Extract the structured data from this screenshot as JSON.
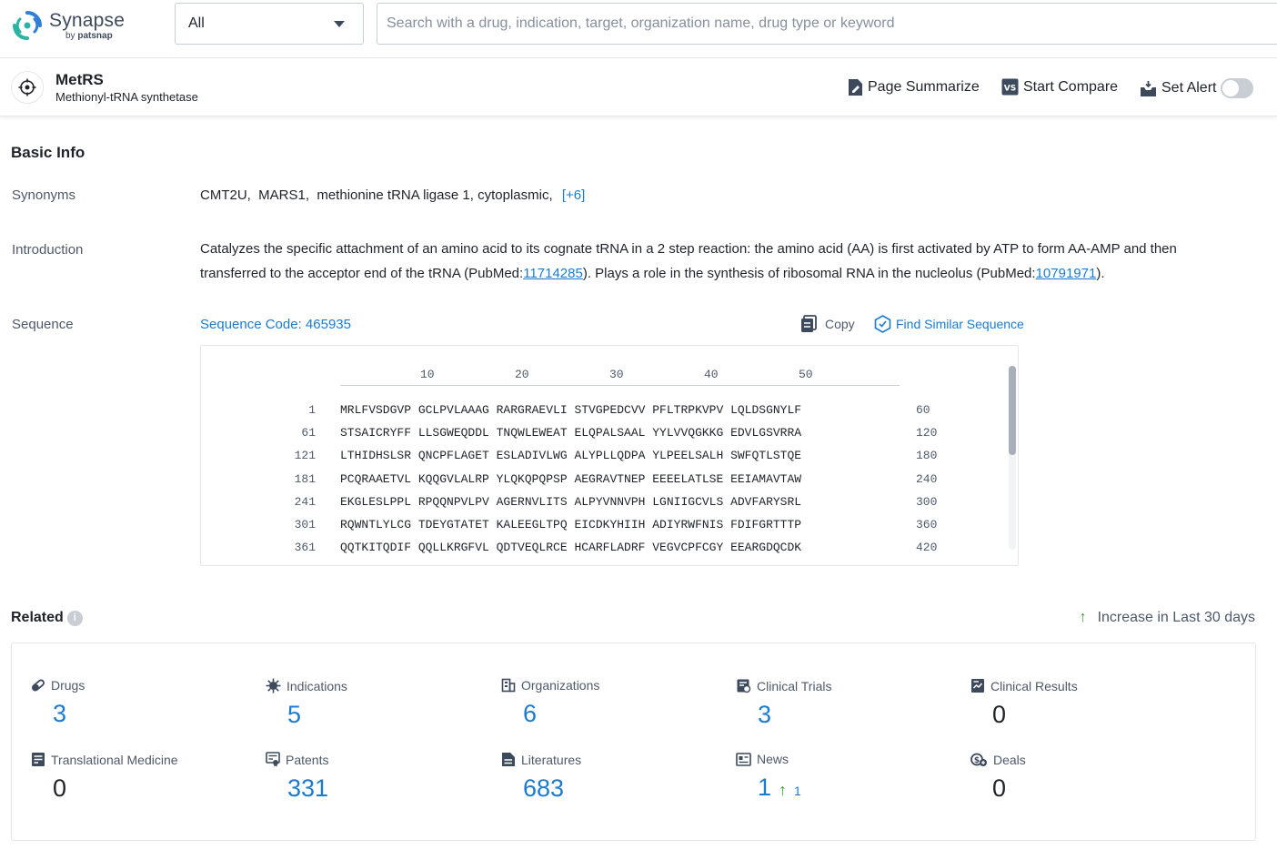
{
  "header": {
    "logo_name": "Synapse",
    "logo_by": "by",
    "logo_brand": "patsnap",
    "select_value": "All",
    "search_placeholder": "Search with a drug, indication, target, organization name, drug type or keyword"
  },
  "target": {
    "name": "MetRS",
    "full_name": "Methionyl-tRNA synthetase",
    "actions": {
      "summarize": "Page Summarize",
      "compare": "Start Compare",
      "alert": "Set Alert"
    }
  },
  "basic_info": {
    "title": "Basic Info",
    "synonyms_label": "Synonyms",
    "synonyms": "CMT2U,  MARS1,  methionine tRNA ligase 1, cytoplasmic,",
    "synonyms_more": "[+6]",
    "intro_label": "Introduction",
    "intro_part1": "Catalyzes the specific attachment of an amino acid to its cognate tRNA in a 2 step reaction: the amino acid (AA) is first activated by ATP to form AA-AMP and then transferred to the acceptor end of the tRNA (PubMed:",
    "intro_ref1": "11714285",
    "intro_part2": "). Plays a role in the synthesis of ribosomal RNA in the nucleolus (PubMed:",
    "intro_ref2": "10791971",
    "intro_part3": ").",
    "sequence_label": "Sequence",
    "sequence_code": "Sequence Code: 465935",
    "copy_label": "Copy",
    "find_similar_label": "Find Similar Sequence",
    "ruler": [
      "10",
      "20",
      "30",
      "40",
      "50"
    ],
    "rows": [
      {
        "start": "1",
        "residues": "MRLFVSDGVP GCLPVLAAAG RARGRAEVLI STVGPEDCVV PFLTRPKVPV LQLDSGNYLF",
        "end": "60"
      },
      {
        "start": "61",
        "residues": "STSAICRYFF LLSGWEQDDL TNQWLEWEAT ELQPALSAAL YYLVVQGKKG EDVLGSVRRA",
        "end": "120"
      },
      {
        "start": "121",
        "residues": "LTHIDHSLSR QNCPFLAGET ESLADIVLWG ALYPLLQDPA YLPEELSALH SWFQTLSTQE",
        "end": "180"
      },
      {
        "start": "181",
        "residues": "PCQRAAETVL KQQGVLALRP YLQKQPQPSP AEGRAVTNEP EEEELATLSE EEIAMAVTAW",
        "end": "240"
      },
      {
        "start": "241",
        "residues": "EKGLESLPPL RPQQNPVLPV AGERNVLITS ALPYVNNVPH LGNIIGCVLS ADVFARYSRL",
        "end": "300"
      },
      {
        "start": "301",
        "residues": "RQWNTLYLCG TDEYGTATET KALEEGLTPQ EICDKYHIIH ADIYRWFNIS FDIFGRTTTP",
        "end": "360"
      },
      {
        "start": "361",
        "residues": "QQTKITQDIF QQLLKRGFVL QDTVEQLRCE HCARFLADRF VEGVCPFCGY EEARGDQCDK",
        "end": "420"
      }
    ]
  },
  "related": {
    "title": "Related",
    "info_glyph": "i",
    "increase_label": "Increase in Last 30 days",
    "stats": [
      {
        "label": "Drugs",
        "value": "3",
        "icon": "pill-icon"
      },
      {
        "label": "Indications",
        "value": "5",
        "icon": "virus-icon"
      },
      {
        "label": "Organizations",
        "value": "6",
        "icon": "building-icon"
      },
      {
        "label": "Clinical Trials",
        "value": "3",
        "icon": "clipboard-icon"
      },
      {
        "label": "Clinical Results",
        "value": "0",
        "icon": "chart-doc-icon"
      },
      {
        "label": "Translational Medicine",
        "value": "0",
        "icon": "doc-icon"
      },
      {
        "label": "Patents",
        "value": "331",
        "icon": "patent-icon"
      },
      {
        "label": "Literatures",
        "value": "683",
        "icon": "literature-icon"
      },
      {
        "label": "News",
        "value": "1",
        "increase": "1",
        "icon": "news-icon"
      },
      {
        "label": "Deals",
        "value": "0",
        "icon": "deals-icon"
      }
    ]
  },
  "colors": {
    "link": "#1a7bd1",
    "increase_arrow": "#3a9d2a",
    "logo_teal": "#2bb3a4",
    "logo_blue": "#2f7fd6"
  }
}
